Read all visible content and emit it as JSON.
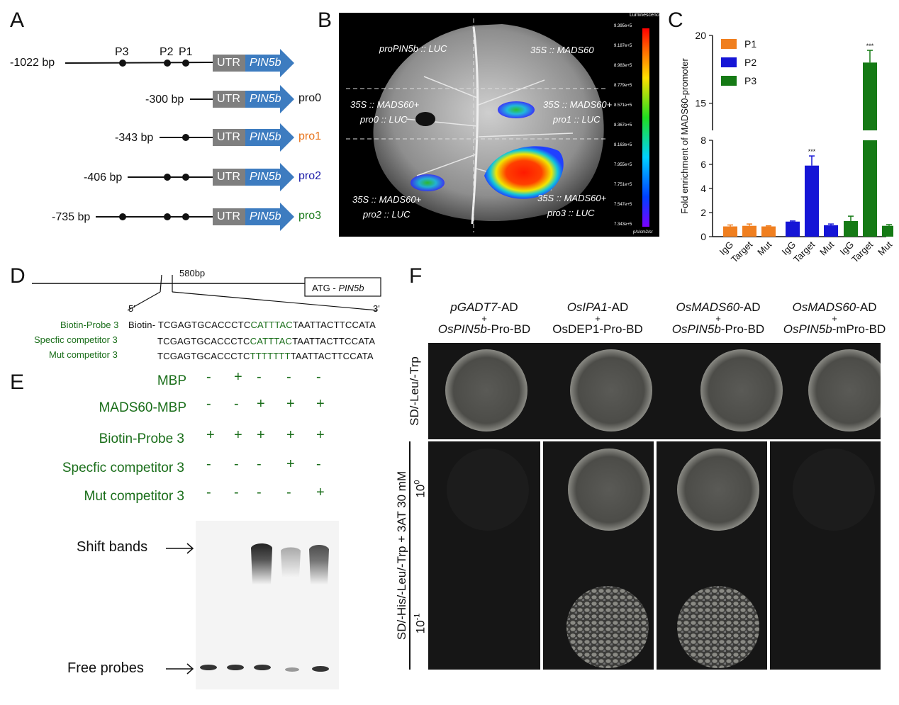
{
  "panels": {
    "A": "A",
    "B": "B",
    "C": "C",
    "D": "D",
    "E": "E",
    "F": "F"
  },
  "panelA": {
    "top_bp": "-1022 bp",
    "site_labels": [
      "P3",
      "P2",
      "P1"
    ],
    "utr": "UTR",
    "gene": "PIN5b",
    "constructs": [
      {
        "bp": "-300 bp",
        "name": "pro0",
        "color": "#111111"
      },
      {
        "bp": "-343 bp",
        "name": "pro1",
        "color": "#e8731a"
      },
      {
        "bp": "-406 bp",
        "name": "pro2",
        "color": "#1a1aa8"
      },
      {
        "bp": "-735 bp",
        "name": "pro3",
        "color": "#1a7a1a"
      }
    ]
  },
  "panelB": {
    "labels": {
      "tl": "proPIN5b :: LUC",
      "tr": "35S :: MADS60",
      "ml1": "35S :: MADS60+",
      "ml2": "pro0 :: LUC",
      "mr1": "35S :: MADS60+",
      "mr2": "pro1 :: LUC",
      "bl1": "35S :: MADS60+",
      "bl2": "pro2 :: LUC",
      "br1": "35S :: MADS60+",
      "br2": "pro3 :: LUC"
    },
    "colorbar_title": "Luminescence",
    "colorbar_ticks": [
      "9.395e+5",
      "9.187e+5",
      "8.983e+5",
      "8.779e+5",
      "8.571e+5",
      "8.367e+5",
      "8.163e+5",
      "7.955e+5",
      "7.751e+5",
      "7.547e+5",
      "7.343e+5"
    ],
    "colorbar_unit": "p/s/cm2/sr"
  },
  "chart_data": {
    "type": "bar",
    "ylabel": "Fold enrichment of MADS60-promoter",
    "ylim_lower": [
      0,
      8
    ],
    "ylim_upper": [
      13,
      20
    ],
    "yticks_lower": [
      "0",
      "2",
      "4",
      "6",
      "8"
    ],
    "yticks_upper": [
      "15",
      "20"
    ],
    "categories": [
      "IgG",
      "Target",
      "Mut"
    ],
    "series": [
      {
        "name": "P1",
        "color": "#f07f1f",
        "values": [
          0.85,
          0.9,
          0.85
        ],
        "errors": [
          0.12,
          0.15,
          0.05
        ]
      },
      {
        "name": "P2",
        "color": "#1515d6",
        "values": [
          1.25,
          5.9,
          0.95
        ],
        "errors": [
          0.05,
          0.8,
          0.1
        ]
      },
      {
        "name": "P3",
        "color": "#157a15",
        "values": [
          1.3,
          18.0,
          0.9
        ],
        "errors": [
          0.4,
          0.9,
          0.1
        ]
      }
    ],
    "significance": [
      "",
      "***",
      "***"
    ]
  },
  "panelD": {
    "bp_label": "580bp",
    "atg": "ATG - ",
    "atg_gene": "PIN5b",
    "five": "5'",
    "three": "3'",
    "rows": [
      {
        "name": "Biotin-Probe 3",
        "prefix": "Biotin- ",
        "a": "TCGAGTGCACCCTC",
        "mid": "CATTTAC",
        "b": "TAATTACTTCCATA"
      },
      {
        "name": "Specfic competitor 3",
        "prefix": "",
        "a": "TCGAGTGCACCCTC",
        "mid": "CATTTAC",
        "b": "TAATTACTTCCATA"
      },
      {
        "name": "Mut competitor 3",
        "prefix": "",
        "a": "TCGAGTGCACCCTC",
        "mid": "TTTTTTT",
        "b": "TAATTACTTCCATA"
      }
    ]
  },
  "panelE": {
    "rows": [
      {
        "name": "MBP",
        "marks": [
          "-",
          "+",
          "-",
          "-",
          "-"
        ]
      },
      {
        "name": "MADS60-MBP",
        "marks": [
          "-",
          "-",
          "+",
          "+",
          "+"
        ]
      },
      {
        "name": "Biotin-Probe  3",
        "marks": [
          "+",
          "+",
          "+",
          "+",
          "+"
        ]
      },
      {
        "name": "Specfic competitor 3",
        "marks": [
          "-",
          "-",
          "-",
          "+",
          "-"
        ]
      },
      {
        "name": "Mut competitor 3",
        "marks": [
          "-",
          "-",
          "-",
          "-",
          "+"
        ]
      }
    ],
    "shift_label": "Shift bands",
    "free_label": "Free probes"
  },
  "panelF": {
    "columns": [
      {
        "l1a": "pGADT7",
        "l1b": "-AD",
        "l2a": "OsPIN5b",
        "l2b": "-Pro-BD"
      },
      {
        "l1a": "OsIPA1",
        "l1b": "-AD",
        "l2a": "",
        "l2b": "OsDEP1-Pro-BD"
      },
      {
        "l1a": "OsMADS60",
        "l1b": "-AD",
        "l2a": "OsPIN5b",
        "l2b": "-Pro-BD"
      },
      {
        "l1a": "OsMADS60",
        "l1b": "-AD",
        "l2a": "OsPIN5b",
        "l2b": "-mPro-BD"
      }
    ],
    "plus": "+",
    "row1_label": "SD/-Leu/-Trp",
    "row2_label": "SD/-His/-Leu/-Trp + 3AT 30 mM",
    "dil1": "10",
    "dil1_exp": "0",
    "dil2": "10",
    "dil2_exp": "-1"
  }
}
